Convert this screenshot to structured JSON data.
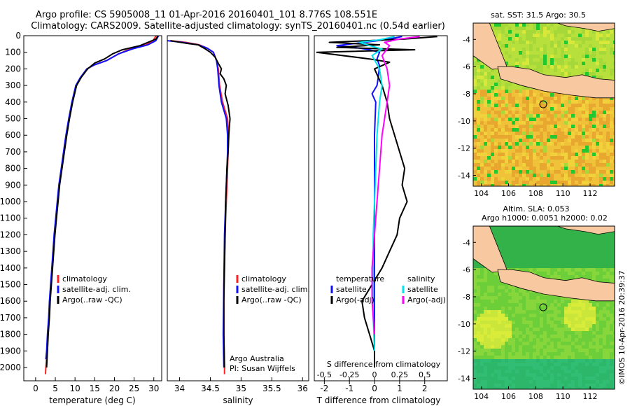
{
  "header": {
    "line1": "Argo profile: CS 5905008_11 01-Apr-2016 20160401_101 8.776S 108.551E",
    "line2": "Climatology: CARS2009. Satellite-adjusted climatology: synTS_20160401.nc (0.54d earlier)"
  },
  "credit": "©IMOS 10-Apr-2016 20:39:37",
  "colors": {
    "climatology": "#ff2020",
    "satellite": "#1010ff",
    "argo": "#000000",
    "sal_satellite": "#00e5ee",
    "sal_argo": "#ff00ff"
  },
  "chart_data": [
    {
      "type": "line",
      "id": "temperature",
      "xlabel": "temperature (deg C)",
      "ylabel": "",
      "xlim": [
        -3,
        32
      ],
      "ylim": [
        2080,
        0
      ],
      "xticks": [
        "0",
        "5",
        "10",
        "15",
        "20",
        "25",
        "30"
      ],
      "yticks": [
        "0",
        "100",
        "200",
        "300",
        "400",
        "500",
        "600",
        "700",
        "800",
        "900",
        "1000",
        "1100",
        "1200",
        "1300",
        "1400",
        "1500",
        "1600",
        "1700",
        "1800",
        "1900",
        "2000"
      ],
      "legend": [
        "climatology",
        "satellite-adj. clim.",
        "Argo(..raw -QC)"
      ],
      "series": [
        {
          "name": "climatology",
          "color": "#ff2020",
          "points": [
            [
              30.6,
              0
            ],
            [
              29.8,
              30
            ],
            [
              28,
              55
            ],
            [
              24,
              80
            ],
            [
              21,
              110
            ],
            [
              18,
              150
            ],
            [
              15,
              175
            ],
            [
              13,
              200
            ],
            [
              11.5,
              250
            ],
            [
              10.3,
              300
            ],
            [
              9.3,
              400
            ],
            [
              8.5,
              500
            ],
            [
              7.8,
              600
            ],
            [
              7.2,
              700
            ],
            [
              6.6,
              800
            ],
            [
              6.0,
              900
            ],
            [
              5.6,
              1000
            ],
            [
              5.2,
              1100
            ],
            [
              4.8,
              1200
            ],
            [
              4.5,
              1300
            ],
            [
              4.2,
              1400
            ],
            [
              3.9,
              1500
            ],
            [
              3.6,
              1600
            ],
            [
              3.4,
              1700
            ],
            [
              3.1,
              1800
            ],
            [
              2.9,
              1900
            ],
            [
              2.6,
              2000
            ],
            [
              2.5,
              2040
            ]
          ]
        },
        {
          "name": "satellite-adj. clim.",
          "color": "#1010ff",
          "points": [
            [
              31.2,
              0
            ],
            [
              30.5,
              30
            ],
            [
              28.5,
              55
            ],
            [
              24.5,
              80
            ],
            [
              21,
              110
            ],
            [
              18,
              150
            ],
            [
              15,
              175
            ],
            [
              13,
              200
            ],
            [
              11.4,
              250
            ],
            [
              10.2,
              300
            ],
            [
              9.2,
              400
            ],
            [
              8.4,
              500
            ],
            [
              7.7,
              600
            ],
            [
              7.1,
              700
            ],
            [
              6.5,
              800
            ],
            [
              5.9,
              900
            ],
            [
              5.5,
              1000
            ],
            [
              5.1,
              1100
            ],
            [
              4.7,
              1200
            ],
            [
              4.4,
              1300
            ],
            [
              4.1,
              1400
            ],
            [
              3.8,
              1500
            ],
            [
              3.5,
              1600
            ],
            [
              3.3,
              1700
            ],
            [
              3.0,
              1800
            ],
            [
              2.8,
              1900
            ],
            [
              2.6,
              1950
            ]
          ]
        },
        {
          "name": "Argo(..raw -QC)",
          "color": "#000000",
          "points": [
            [
              31,
              2
            ],
            [
              30.6,
              20
            ],
            [
              28.5,
              40
            ],
            [
              26.5,
              60
            ],
            [
              22,
              85
            ],
            [
              19.5,
              110
            ],
            [
              17.5,
              140
            ],
            [
              15,
              165
            ],
            [
              13.2,
              200
            ],
            [
              11.6,
              250
            ],
            [
              10.4,
              300
            ],
            [
              9.4,
              400
            ],
            [
              8.6,
              500
            ],
            [
              7.9,
              600
            ],
            [
              7.3,
              700
            ],
            [
              6.7,
              800
            ],
            [
              6.1,
              900
            ],
            [
              5.7,
              1000
            ],
            [
              5.3,
              1100
            ],
            [
              4.9,
              1200
            ],
            [
              4.6,
              1300
            ],
            [
              4.3,
              1400
            ],
            [
              4.0,
              1500
            ],
            [
              3.7,
              1600
            ],
            [
              3.5,
              1700
            ],
            [
              3.2,
              1800
            ],
            [
              3.0,
              1900
            ],
            [
              2.8,
              2000
            ]
          ]
        }
      ]
    },
    {
      "type": "line",
      "id": "salinity",
      "xlabel": "salinity",
      "ylabel": "",
      "xlim": [
        33.8,
        36.1
      ],
      "ylim": [
        2080,
        0
      ],
      "xticks": [
        "34",
        "34.5",
        "35",
        "35.5",
        "36"
      ],
      "legend": [
        "climatology",
        "satellite-adj. clim.",
        "Argo(..raw -QC)"
      ],
      "annotation": [
        "Argo Australia",
        "PI: Susan Wijffels"
      ],
      "series": [
        {
          "name": "climatology",
          "color": "#ff2020",
          "points": [
            [
              33.85,
              30
            ],
            [
              34.1,
              40
            ],
            [
              34.32,
              55
            ],
            [
              34.45,
              75
            ],
            [
              34.55,
              100
            ],
            [
              34.6,
              150
            ],
            [
              34.63,
              200
            ],
            [
              34.65,
              300
            ],
            [
              34.7,
              400
            ],
            [
              34.78,
              500
            ],
            [
              34.8,
              600
            ],
            [
              34.79,
              700
            ],
            [
              34.78,
              800
            ],
            [
              34.76,
              1000
            ],
            [
              34.74,
              1200
            ],
            [
              34.72,
              1500
            ],
            [
              34.72,
              1800
            ],
            [
              34.73,
              2000
            ],
            [
              34.73,
              2040
            ]
          ]
        },
        {
          "name": "satellite-adj. clim.",
          "color": "#1010ff",
          "points": [
            [
              33.8,
              30
            ],
            [
              34.05,
              40
            ],
            [
              34.3,
              55
            ],
            [
              34.45,
              75
            ],
            [
              34.55,
              100
            ],
            [
              34.6,
              150
            ],
            [
              34.62,
              200
            ],
            [
              34.64,
              300
            ],
            [
              34.68,
              400
            ],
            [
              34.76,
              500
            ],
            [
              34.78,
              600
            ],
            [
              34.78,
              700
            ],
            [
              34.77,
              800
            ],
            [
              34.75,
              1000
            ],
            [
              34.73,
              1200
            ],
            [
              34.72,
              1500
            ],
            [
              34.71,
              1800
            ],
            [
              34.72,
              2000
            ]
          ]
        },
        {
          "name": "Argo(..raw -QC)",
          "color": "#000000",
          "points": [
            [
              33.85,
              30
            ],
            [
              34.1,
              45
            ],
            [
              34.3,
              55
            ],
            [
              34.42,
              80
            ],
            [
              34.5,
              100
            ],
            [
              34.58,
              130
            ],
            [
              34.62,
              160
            ],
            [
              34.68,
              200
            ],
            [
              34.66,
              230
            ],
            [
              34.72,
              260
            ],
            [
              34.76,
              300
            ],
            [
              34.74,
              350
            ],
            [
              34.79,
              420
            ],
            [
              34.82,
              500
            ],
            [
              34.8,
              600
            ],
            [
              34.79,
              700
            ],
            [
              34.77,
              800
            ],
            [
              34.76,
              900
            ],
            [
              34.75,
              1000
            ],
            [
              34.74,
              1200
            ],
            [
              34.73,
              1400
            ],
            [
              34.72,
              1600
            ],
            [
              34.72,
              1800
            ],
            [
              34.73,
              2000
            ]
          ]
        }
      ]
    },
    {
      "type": "line",
      "id": "difference",
      "xlabel": "T difference from climatology",
      "xlabel_top": "S difference from climatology",
      "ylabel": "",
      "xlim": [
        -2.4,
        2.9
      ],
      "ylim": [
        2080,
        0
      ],
      "xticks": [
        "-2",
        "-1",
        "0",
        "1",
        "2"
      ],
      "xticks_top": [
        "-0.5",
        "-0.25",
        "0",
        "0.25",
        "0.5"
      ],
      "legend_left_title": "temperature",
      "legend_right_title": "salinity",
      "legend_left": [
        "satellite",
        "Argo(-adj)"
      ],
      "legend_right": [
        "satellite",
        "Argo(-adj)"
      ],
      "series": [
        {
          "name": "satellite",
          "color": "#1010ff",
          "points": [
            [
              1.1,
              5
            ],
            [
              0.4,
              25
            ],
            [
              -0.4,
              40
            ],
            [
              -1.5,
              60
            ],
            [
              -0.8,
              70
            ],
            [
              -0.2,
              85
            ],
            [
              0.2,
              100
            ],
            [
              0.1,
              140
            ],
            [
              0.2,
              180
            ],
            [
              0.15,
              250
            ],
            [
              0.1,
              300
            ],
            [
              -0.1,
              350
            ],
            [
              0.05,
              400
            ],
            [
              0.0,
              600
            ],
            [
              0.0,
              1000
            ],
            [
              0.0,
              1500
            ],
            [
              0.0,
              2000
            ]
          ]
        },
        {
          "name": "Argo(-adj)",
          "color": "#000000",
          "points": [
            [
              2.5,
              5
            ],
            [
              1.2,
              20
            ],
            [
              -1.8,
              40
            ],
            [
              0.2,
              55
            ],
            [
              -1.5,
              70
            ],
            [
              1.6,
              85
            ],
            [
              -2.3,
              100
            ],
            [
              -0.2,
              140
            ],
            [
              0.6,
              160
            ],
            [
              0.0,
              200
            ],
            [
              0.3,
              300
            ],
            [
              0.5,
              400
            ],
            [
              0.6,
              500
            ],
            [
              0.8,
              600
            ],
            [
              1.0,
              700
            ],
            [
              1.2,
              800
            ],
            [
              1.1,
              900
            ],
            [
              1.3,
              1000
            ],
            [
              1.0,
              1100
            ],
            [
              0.9,
              1200
            ],
            [
              0.6,
              1300
            ],
            [
              0.3,
              1400
            ],
            [
              -0.1,
              1500
            ],
            [
              -0.5,
              1600
            ],
            [
              -0.4,
              1700
            ],
            [
              -0.2,
              1800
            ],
            [
              0.0,
              1900
            ],
            [
              0.0,
              2000
            ]
          ]
        },
        {
          "name": "satellite",
          "color": "#00e5ee",
          "points": [
            [
              0.8,
              5
            ],
            [
              0.2,
              25
            ],
            [
              -0.6,
              40
            ],
            [
              -0.2,
              60
            ],
            [
              0.3,
              80
            ],
            [
              -0.1,
              120
            ],
            [
              0.2,
              200
            ],
            [
              0.3,
              300
            ],
            [
              0.2,
              400
            ],
            [
              0.1,
              600
            ],
            [
              0.05,
              800
            ],
            [
              0.0,
              1000
            ],
            [
              -0.05,
              1200
            ],
            [
              -0.05,
              1500
            ],
            [
              -0.05,
              1700
            ],
            [
              0.0,
              1900
            ]
          ]
        },
        {
          "name": "Argo(-adj)",
          "color": "#ff00ff",
          "points": [
            [
              1.8,
              5
            ],
            [
              1.0,
              20
            ],
            [
              0.4,
              40
            ],
            [
              0.6,
              60
            ],
            [
              0.5,
              80
            ],
            [
              0.3,
              120
            ],
            [
              0.5,
              200
            ],
            [
              0.6,
              300
            ],
            [
              0.5,
              400
            ],
            [
              0.3,
              600
            ],
            [
              0.2,
              800
            ],
            [
              0.1,
              1000
            ],
            [
              0.0,
              1200
            ],
            [
              -0.1,
              1400
            ],
            [
              -0.1,
              1600
            ],
            [
              0.0,
              1800
            ]
          ]
        }
      ]
    },
    {
      "type": "heatmap",
      "id": "sst_map",
      "title": "sat. SST: 31.5 Argo: 30.5",
      "xlim": [
        103.4,
        113.8
      ],
      "ylim": [
        -14.8,
        -2.8
      ],
      "xticks": [
        "104",
        "106",
        "108",
        "110",
        "112"
      ],
      "yticks": [
        "-4",
        "-6",
        "-8",
        "-10",
        "-12",
        "-14"
      ],
      "marker": [
        108.551,
        -8.776
      ]
    },
    {
      "type": "heatmap",
      "id": "sla_map",
      "title": [
        "Altim. SLA: 0.053",
        "Argo h1000: 0.0051 h2000: 0.02"
      ],
      "xlim": [
        103.4,
        113.8
      ],
      "ylim": [
        -14.8,
        -2.8
      ],
      "xticks": [
        "104",
        "106",
        "108",
        "110",
        "112"
      ],
      "yticks": [
        "-4",
        "-6",
        "-8",
        "-10",
        "-12",
        "-14"
      ],
      "marker": [
        108.551,
        -8.776
      ]
    }
  ]
}
